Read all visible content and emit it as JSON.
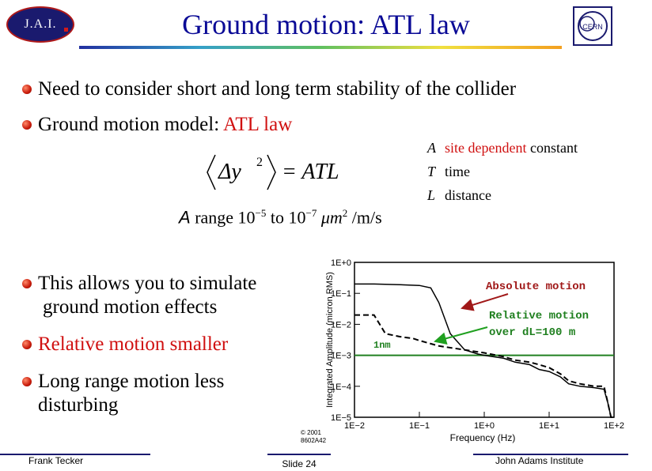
{
  "header": {
    "logo_text": "J.A.I.",
    "title": "Ground motion: ATL law",
    "cern_logo_text": "CERN"
  },
  "bullets": [
    {
      "text": "Need to consider short and long term stability of the collider"
    },
    {
      "text": "Ground motion model: ",
      "highlight": "ATL law"
    },
    {
      "text_line1": "This allows you to simulate",
      "text_line2": "ground motion effects"
    },
    {
      "text": "Relative motion smaller"
    },
    {
      "text_line1": "Long range motion less",
      "text_line2": "disturbing"
    }
  ],
  "equation": {
    "lhs_delta": "Δy",
    "exponent": "2",
    "rhs": "= ATL"
  },
  "legend": [
    {
      "symbol": "A",
      "highlight": "site dependent",
      "text": " constant"
    },
    {
      "symbol": "T",
      "text": "time"
    },
    {
      "symbol": "L",
      "text": "distance"
    }
  ],
  "range": {
    "symbol": "A",
    "text_before": " range 10",
    "exp1": "−5",
    "text_mid": " to 10",
    "exp2": "−7",
    "units": " μm",
    "units_exp": "2",
    "units_tail": " /m/s"
  },
  "plot": {
    "ylabel": "Integrated Amplitude (micron RMS)",
    "xlabel": "Frequency (Hz)",
    "xticks": [
      "1E−2",
      "1E−1",
      "1E+0",
      "1E+1",
      "1E+2"
    ],
    "yticks": [
      "1E+0",
      "1E−1",
      "1E−2",
      "1E−3",
      "1E−4",
      "1E−5"
    ],
    "annotation_absolute": "Absolute motion",
    "annotation_relative_1": "Relative motion",
    "annotation_relative_2": "over dL=100 m",
    "annotation_1nm": "1nm",
    "copyright_1": "© 2001",
    "copyright_2": "8602A42",
    "colors": {
      "arrow_absolute": "#a01818",
      "arrow_relative": "#20a020",
      "hline": "#208020"
    }
  },
  "chart_data": {
    "type": "line",
    "xlabel": "Frequency (Hz)",
    "ylabel": "Integrated Amplitude (micron RMS)",
    "x_scale": "log",
    "y_scale": "log",
    "xlim": [
      0.01,
      100
    ],
    "ylim": [
      1e-05,
      1
    ],
    "series": [
      {
        "name": "Absolute motion",
        "style": "solid",
        "x": [
          0.01,
          0.02,
          0.05,
          0.1,
          0.15,
          0.2,
          0.3,
          0.5,
          0.8,
          1,
          2,
          3,
          5,
          7,
          10,
          15,
          20,
          30,
          50,
          70,
          80,
          90,
          100
        ],
        "y": [
          0.2,
          0.2,
          0.19,
          0.18,
          0.15,
          0.05,
          0.005,
          0.0015,
          0.0011,
          0.001,
          0.0008,
          0.0006,
          0.0005,
          0.00035,
          0.0003,
          0.0002,
          0.00012,
          0.0001,
          9e-05,
          8e-05,
          3e-05,
          1e-05,
          1e-05
        ]
      },
      {
        "name": "Relative motion over dL=100 m",
        "style": "dashed",
        "x": [
          0.01,
          0.02,
          0.03,
          0.05,
          0.08,
          0.1,
          0.2,
          0.5,
          1,
          2,
          3,
          5,
          7,
          10,
          15,
          20,
          30,
          50,
          70,
          80,
          90,
          100
        ],
        "y": [
          0.02,
          0.02,
          0.005,
          0.004,
          0.0035,
          0.003,
          0.002,
          0.0015,
          0.0012,
          0.0009,
          0.0007,
          0.0006,
          0.0005,
          0.0004,
          0.00025,
          0.00015,
          0.00012,
          0.0001,
          0.0001,
          3e-05,
          1e-05,
          1e-05
        ]
      }
    ],
    "hline": {
      "y": 0.001,
      "label": "1nm"
    }
  },
  "footer": {
    "author": "Frank Tecker",
    "slide": "Slide 24",
    "institute": "John Adams Institute"
  }
}
